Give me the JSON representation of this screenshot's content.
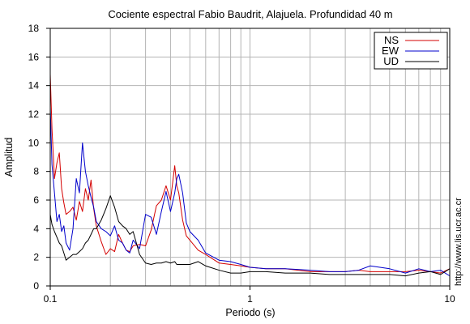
{
  "chart_data": {
    "type": "line",
    "title": "Cociente espectral Fabio Baudrit, Alajuela. Profundidad 40 m",
    "xlabel": "Periodo (s)",
    "ylabel": "Amplitud",
    "xscale": "log",
    "xlim": [
      0.1,
      10
    ],
    "ylim": [
      0,
      18
    ],
    "xticks": [
      {
        "value": 0.1,
        "label": "0.1"
      },
      {
        "value": 1,
        "label": "1"
      },
      {
        "value": 10,
        "label": "10"
      }
    ],
    "yticks": [
      0,
      2,
      4,
      6,
      8,
      10,
      12,
      14,
      16,
      18
    ],
    "grid": true,
    "legend_position": "top-right",
    "annotation": "http://www.lis.ucr.ac.cr",
    "series": [
      {
        "name": "NS",
        "color": "#d40000",
        "x": [
          0.1,
          0.102,
          0.105,
          0.108,
          0.111,
          0.114,
          0.117,
          0.12,
          0.125,
          0.13,
          0.135,
          0.14,
          0.145,
          0.15,
          0.155,
          0.16,
          0.165,
          0.17,
          0.18,
          0.19,
          0.2,
          0.21,
          0.22,
          0.23,
          0.24,
          0.25,
          0.26,
          0.28,
          0.3,
          0.32,
          0.34,
          0.36,
          0.38,
          0.4,
          0.42,
          0.43,
          0.44,
          0.46,
          0.48,
          0.5,
          0.55,
          0.6,
          0.7,
          0.8,
          0.9,
          1.0,
          1.2,
          1.5,
          2.0,
          2.5,
          3.0,
          3.5,
          4.0,
          5.0,
          6.0,
          7.0,
          8.0,
          9.0,
          10.0
        ],
        "y": [
          14.8,
          11.0,
          7.5,
          8.6,
          9.3,
          6.8,
          5.8,
          5.0,
          5.2,
          5.5,
          4.6,
          5.9,
          5.2,
          6.8,
          6.0,
          7.4,
          5.4,
          4.2,
          3.1,
          2.2,
          2.6,
          2.4,
          3.6,
          3.0,
          2.5,
          2.4,
          2.8,
          2.9,
          2.8,
          3.9,
          5.6,
          6.0,
          7.0,
          6.0,
          8.4,
          7.0,
          6.5,
          4.6,
          3.5,
          3.2,
          2.5,
          2.2,
          1.6,
          1.5,
          1.4,
          1.3,
          1.2,
          1.2,
          1.0,
          1.0,
          1.0,
          1.1,
          1.0,
          1.0,
          1.0,
          1.1,
          1.0,
          0.9,
          1.2
        ]
      },
      {
        "name": "EW",
        "color": "#0000cc",
        "x": [
          0.1,
          0.102,
          0.105,
          0.108,
          0.111,
          0.114,
          0.117,
          0.12,
          0.125,
          0.13,
          0.135,
          0.14,
          0.145,
          0.15,
          0.155,
          0.16,
          0.165,
          0.17,
          0.18,
          0.19,
          0.2,
          0.21,
          0.22,
          0.23,
          0.24,
          0.25,
          0.26,
          0.28,
          0.3,
          0.32,
          0.34,
          0.36,
          0.38,
          0.4,
          0.42,
          0.43,
          0.44,
          0.46,
          0.48,
          0.5,
          0.55,
          0.6,
          0.7,
          0.8,
          0.9,
          1.0,
          1.2,
          1.5,
          2.0,
          2.5,
          3.0,
          3.5,
          4.0,
          5.0,
          6.0,
          7.0,
          8.0,
          9.0,
          10.0
        ],
        "y": [
          12.5,
          8.5,
          6.5,
          4.5,
          5.0,
          3.8,
          4.2,
          3.0,
          2.5,
          4.0,
          7.5,
          6.5,
          10.0,
          8.0,
          7.0,
          6.2,
          5.5,
          4.5,
          4.0,
          3.8,
          3.5,
          4.2,
          3.2,
          3.0,
          2.5,
          2.3,
          3.2,
          2.6,
          5.0,
          4.8,
          3.6,
          5.2,
          6.6,
          5.2,
          6.5,
          7.5,
          7.8,
          6.5,
          4.4,
          3.8,
          3.2,
          2.3,
          1.8,
          1.7,
          1.5,
          1.3,
          1.2,
          1.2,
          1.1,
          1.0,
          1.0,
          1.1,
          1.4,
          1.2,
          0.9,
          1.2,
          1.0,
          1.1,
          0.7
        ]
      },
      {
        "name": "UD",
        "color": "#000000",
        "x": [
          0.1,
          0.102,
          0.105,
          0.108,
          0.111,
          0.114,
          0.117,
          0.12,
          0.125,
          0.13,
          0.135,
          0.14,
          0.145,
          0.15,
          0.155,
          0.16,
          0.165,
          0.17,
          0.18,
          0.19,
          0.2,
          0.21,
          0.22,
          0.23,
          0.24,
          0.25,
          0.26,
          0.28,
          0.3,
          0.32,
          0.34,
          0.36,
          0.38,
          0.4,
          0.42,
          0.43,
          0.44,
          0.46,
          0.48,
          0.5,
          0.55,
          0.6,
          0.7,
          0.8,
          0.9,
          1.0,
          1.2,
          1.5,
          2.0,
          2.5,
          3.0,
          3.5,
          4.0,
          5.0,
          6.0,
          7.0,
          8.0,
          9.0,
          10.0
        ],
        "y": [
          5.0,
          4.3,
          3.8,
          3.4,
          3.0,
          2.8,
          2.3,
          1.8,
          2.0,
          2.2,
          2.2,
          2.4,
          2.6,
          3.0,
          3.2,
          3.6,
          4.0,
          4.0,
          4.6,
          5.4,
          6.3,
          5.5,
          4.5,
          4.2,
          4.0,
          3.6,
          3.8,
          2.2,
          1.6,
          1.5,
          1.6,
          1.6,
          1.7,
          1.6,
          1.7,
          1.5,
          1.5,
          1.5,
          1.5,
          1.5,
          1.7,
          1.4,
          1.1,
          0.9,
          0.9,
          1.0,
          1.0,
          0.9,
          0.9,
          0.8,
          0.8,
          0.8,
          0.8,
          0.8,
          0.7,
          0.9,
          1.0,
          0.8,
          1.2
        ]
      }
    ]
  }
}
